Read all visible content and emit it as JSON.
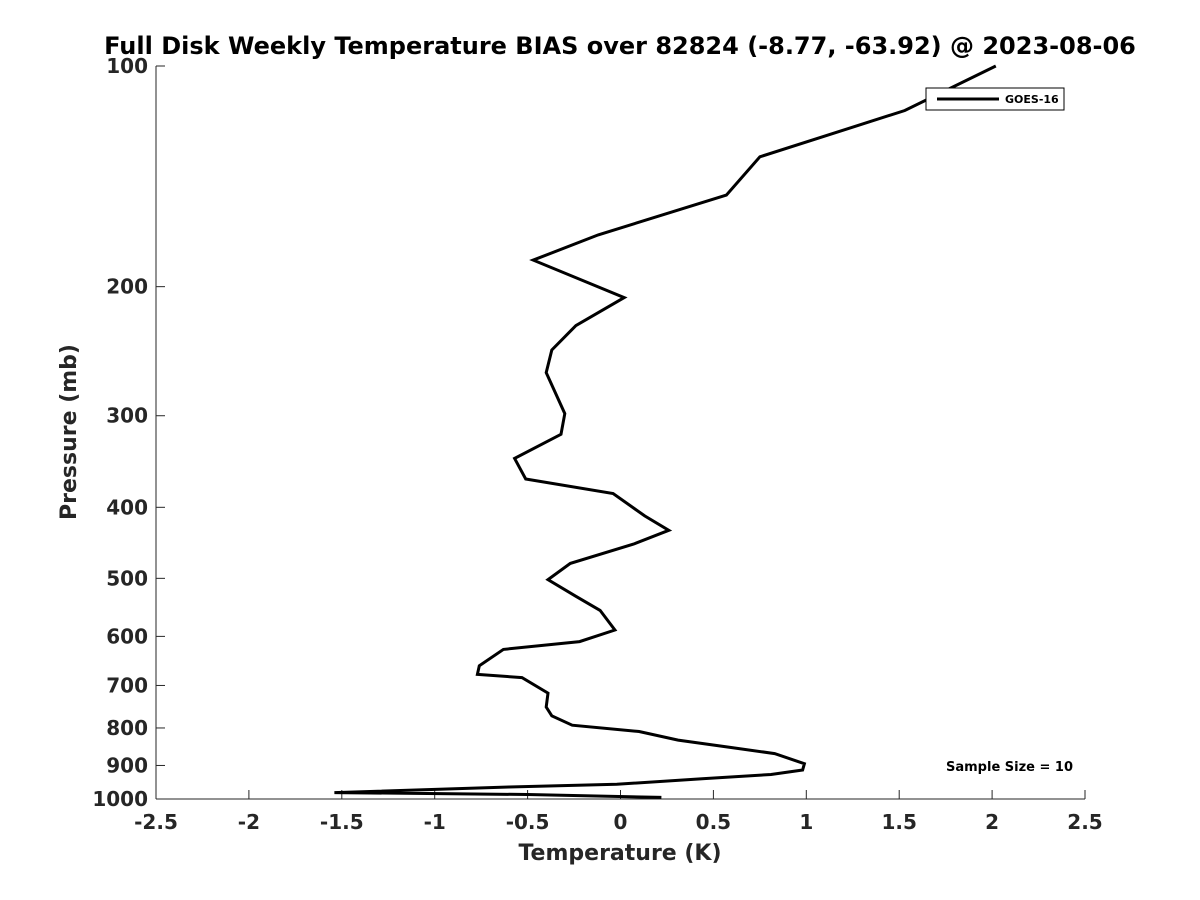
{
  "chart_data": {
    "type": "line",
    "title": "Full Disk Weekly Temperature BIAS over 82824 (-8.77, -63.92) @ 2023-08-06",
    "xlabel": "Temperature (K)",
    "ylabel": "Pressure (mb)",
    "xlim": [
      -2.5,
      2.5
    ],
    "ylim": [
      100,
      1000
    ],
    "y_scale": "log",
    "y_reversed": true,
    "grid": false,
    "legend_position": "top-right",
    "x_ticks": [
      -2.5,
      -2,
      -1.5,
      -1,
      -0.5,
      0,
      0.5,
      1,
      1.5,
      2,
      2.5
    ],
    "x_tick_labels": [
      "-2.5",
      "-2",
      "-1.5",
      "-1",
      "-0.5",
      "0",
      "0.5",
      "1",
      "1.5",
      "2",
      "2.5"
    ],
    "y_ticks": [
      100,
      200,
      300,
      400,
      500,
      600,
      700,
      800,
      900,
      1000
    ],
    "y_tick_labels": [
      "100",
      "200",
      "300",
      "400",
      "500",
      "600",
      "700",
      "800",
      "900",
      "1000"
    ],
    "series": [
      {
        "name": "GOES-16",
        "color": "#000000",
        "x": [
          2.02,
          1.53,
          0.75,
          0.57,
          -0.12,
          -0.47,
          0.02,
          -0.24,
          -0.37,
          -0.4,
          -0.3,
          -0.32,
          -0.57,
          -0.51,
          -0.04,
          0.13,
          0.26,
          0.07,
          -0.27,
          -0.39,
          -0.24,
          -0.11,
          -0.03,
          -0.22,
          -0.63,
          -0.76,
          -0.77,
          -0.53,
          -0.39,
          -0.4,
          -0.37,
          -0.26,
          0.1,
          0.31,
          0.6,
          0.83,
          0.99,
          0.98,
          0.81,
          0.45,
          -0.02,
          -0.6,
          -1.54,
          -0.5,
          0.22
        ],
        "y": [
          100,
          115,
          133,
          150,
          170,
          184,
          207,
          226,
          244,
          262,
          298,
          318,
          343,
          366,
          383,
          411,
          430,
          449,
          477,
          502,
          529,
          553,
          588,
          610,
          625,
          658,
          676,
          683,
          717,
          749,
          770,
          793,
          809,
          831,
          851,
          867,
          895,
          913,
          926,
          938,
          955,
          963,
          980,
          986,
          995
        ]
      }
    ],
    "annotations": [
      {
        "text": "Sample Size = 10"
      }
    ]
  }
}
